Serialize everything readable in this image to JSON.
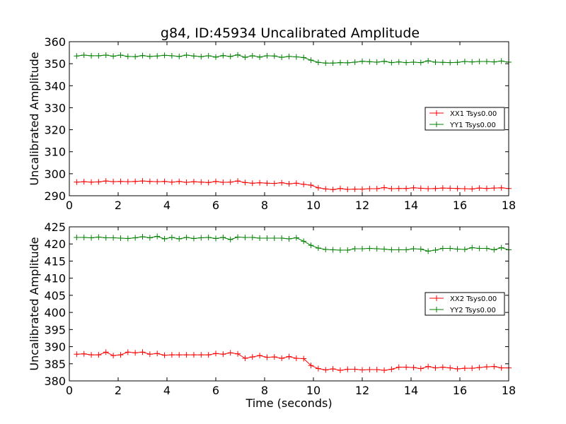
{
  "chart_data": [
    {
      "type": "line",
      "title": "g84, ID:45934 Uncalibrated Amplitude",
      "xlabel": "",
      "ylabel": "Uncalibrated Amplitude",
      "xlim": [
        0,
        18
      ],
      "ylim": [
        290,
        360
      ],
      "xticks": [
        0,
        2,
        4,
        6,
        8,
        10,
        12,
        14,
        16,
        18
      ],
      "yticks": [
        290,
        300,
        310,
        320,
        330,
        340,
        350,
        360
      ],
      "legend": "center-right",
      "grid": false,
      "series": [
        {
          "name": "XX1 Tsys0.00",
          "color": "#ff0000",
          "x": [
            0.3,
            0.6,
            0.9,
            1.2,
            1.5,
            1.8,
            2.1,
            2.4,
            2.7,
            3.0,
            3.3,
            3.6,
            3.9,
            4.2,
            4.5,
            4.8,
            5.1,
            5.4,
            5.7,
            6.0,
            6.3,
            6.6,
            6.9,
            7.2,
            7.5,
            7.8,
            8.1,
            8.4,
            8.7,
            9.0,
            9.3,
            9.6,
            9.9,
            10.2,
            10.5,
            10.8,
            11.1,
            11.4,
            11.7,
            12.0,
            12.3,
            12.6,
            12.9,
            13.2,
            13.5,
            13.8,
            14.1,
            14.4,
            14.7,
            15.0,
            15.3,
            15.6,
            15.9,
            16.2,
            16.5,
            16.8,
            17.1,
            17.4,
            17.7,
            18.0
          ],
          "y": [
            296.2,
            296.4,
            296.2,
            296.3,
            296.7,
            296.4,
            296.5,
            296.4,
            296.5,
            296.7,
            296.5,
            296.4,
            296.5,
            296.2,
            296.5,
            296.1,
            296.4,
            296.2,
            296.0,
            296.5,
            296.1,
            296.2,
            296.7,
            296.0,
            295.7,
            295.9,
            295.7,
            295.6,
            295.9,
            295.4,
            295.7,
            295.2,
            294.8,
            293.6,
            293.1,
            292.8,
            293.3,
            292.9,
            293.0,
            293.0,
            293.2,
            293.2,
            293.7,
            293.2,
            293.3,
            293.3,
            293.6,
            293.4,
            293.2,
            293.3,
            293.5,
            293.4,
            293.3,
            293.2,
            293.1,
            293.5,
            293.3,
            293.5,
            293.6,
            293.3
          ]
        },
        {
          "name": "YY1 Tsys0.00",
          "color": "#008000",
          "x": [
            0.3,
            0.6,
            0.9,
            1.2,
            1.5,
            1.8,
            2.1,
            2.4,
            2.7,
            3.0,
            3.3,
            3.6,
            3.9,
            4.2,
            4.5,
            4.8,
            5.1,
            5.4,
            5.7,
            6.0,
            6.3,
            6.6,
            6.9,
            7.2,
            7.5,
            7.8,
            8.1,
            8.4,
            8.7,
            9.0,
            9.3,
            9.6,
            9.9,
            10.2,
            10.5,
            10.8,
            11.1,
            11.4,
            11.7,
            12.0,
            12.3,
            12.6,
            12.9,
            13.2,
            13.5,
            13.8,
            14.1,
            14.4,
            14.7,
            15.0,
            15.3,
            15.6,
            15.9,
            16.2,
            16.5,
            16.8,
            17.1,
            17.4,
            17.7,
            18.0
          ],
          "y": [
            353.5,
            353.9,
            353.6,
            353.6,
            353.9,
            353.4,
            353.9,
            353.3,
            353.2,
            353.7,
            353.3,
            353.5,
            353.8,
            353.6,
            353.3,
            353.9,
            353.5,
            353.2,
            353.6,
            353.0,
            353.7,
            353.3,
            354.0,
            352.9,
            353.6,
            353.0,
            353.6,
            353.5,
            352.9,
            353.3,
            353.1,
            352.8,
            351.6,
            350.6,
            350.3,
            350.3,
            350.5,
            350.4,
            350.7,
            351.1,
            350.9,
            350.7,
            351.1,
            350.5,
            350.8,
            350.5,
            350.7,
            350.5,
            351.3,
            350.7,
            350.6,
            350.5,
            350.6,
            351.0,
            350.8,
            351.0,
            351.0,
            350.8,
            351.2,
            350.7
          ]
        }
      ]
    },
    {
      "type": "line",
      "title": "",
      "xlabel": "Time (seconds)",
      "ylabel": "Uncalibrated Amplitude",
      "xlim": [
        0,
        18
      ],
      "ylim": [
        380,
        425
      ],
      "xticks": [
        0,
        2,
        4,
        6,
        8,
        10,
        12,
        14,
        16,
        18
      ],
      "yticks": [
        380,
        385,
        390,
        395,
        400,
        405,
        410,
        415,
        420,
        425
      ],
      "legend": "center-right",
      "grid": false,
      "series": [
        {
          "name": "XX2 Tsys0.00",
          "color": "#ff0000",
          "x": [
            0.3,
            0.6,
            0.9,
            1.2,
            1.5,
            1.8,
            2.1,
            2.4,
            2.7,
            3.0,
            3.3,
            3.6,
            3.9,
            4.2,
            4.5,
            4.8,
            5.1,
            5.4,
            5.7,
            6.0,
            6.3,
            6.6,
            6.9,
            7.2,
            7.5,
            7.8,
            8.1,
            8.4,
            8.7,
            9.0,
            9.3,
            9.6,
            9.9,
            10.2,
            10.5,
            10.8,
            11.1,
            11.4,
            11.7,
            12.0,
            12.3,
            12.6,
            12.9,
            13.2,
            13.5,
            13.8,
            14.1,
            14.4,
            14.7,
            15.0,
            15.3,
            15.6,
            15.9,
            16.2,
            16.5,
            16.8,
            17.1,
            17.4,
            17.7,
            18.0
          ],
          "y": [
            387.8,
            387.9,
            387.6,
            387.6,
            388.4,
            387.4,
            387.6,
            388.4,
            388.2,
            388.4,
            387.8,
            388.0,
            387.5,
            387.6,
            387.6,
            387.6,
            387.6,
            387.6,
            387.6,
            388.0,
            387.8,
            388.2,
            387.9,
            386.6,
            387.0,
            387.4,
            386.9,
            387.0,
            386.6,
            387.1,
            386.6,
            386.5,
            384.5,
            383.6,
            383.2,
            383.5,
            383.1,
            383.4,
            383.4,
            383.2,
            383.3,
            383.3,
            383.1,
            383.4,
            384.0,
            384.0,
            383.9,
            383.6,
            384.2,
            383.8,
            384.0,
            383.8,
            383.5,
            383.7,
            383.7,
            383.9,
            384.1,
            384.2,
            383.8,
            383.8
          ]
        },
        {
          "name": "YY2 Tsys0.00",
          "color": "#008000",
          "x": [
            0.3,
            0.6,
            0.9,
            1.2,
            1.5,
            1.8,
            2.1,
            2.4,
            2.7,
            3.0,
            3.3,
            3.6,
            3.9,
            4.2,
            4.5,
            4.8,
            5.1,
            5.4,
            5.7,
            6.0,
            6.3,
            6.6,
            6.9,
            7.2,
            7.5,
            7.8,
            8.1,
            8.4,
            8.7,
            9.0,
            9.3,
            9.6,
            9.9,
            10.2,
            10.5,
            10.8,
            11.1,
            11.4,
            11.7,
            12.0,
            12.3,
            12.6,
            12.9,
            13.2,
            13.5,
            13.8,
            14.1,
            14.4,
            14.7,
            15.0,
            15.3,
            15.6,
            15.9,
            16.2,
            16.5,
            16.8,
            17.1,
            17.4,
            17.7,
            18.0
          ],
          "y": [
            421.9,
            421.9,
            421.8,
            422.0,
            421.8,
            421.8,
            421.7,
            421.6,
            421.8,
            422.1,
            421.8,
            422.2,
            421.5,
            421.9,
            421.5,
            421.9,
            421.6,
            421.8,
            421.9,
            421.6,
            421.9,
            421.3,
            422.0,
            421.9,
            421.9,
            421.7,
            421.7,
            421.7,
            421.7,
            421.5,
            421.8,
            420.8,
            419.6,
            418.8,
            418.4,
            418.3,
            418.2,
            418.2,
            418.6,
            418.6,
            418.7,
            418.6,
            418.5,
            418.3,
            418.3,
            418.3,
            418.6,
            418.5,
            417.9,
            418.2,
            418.7,
            418.7,
            418.5,
            418.4,
            418.9,
            418.7,
            418.7,
            418.3,
            418.9,
            418.3
          ]
        }
      ]
    }
  ]
}
